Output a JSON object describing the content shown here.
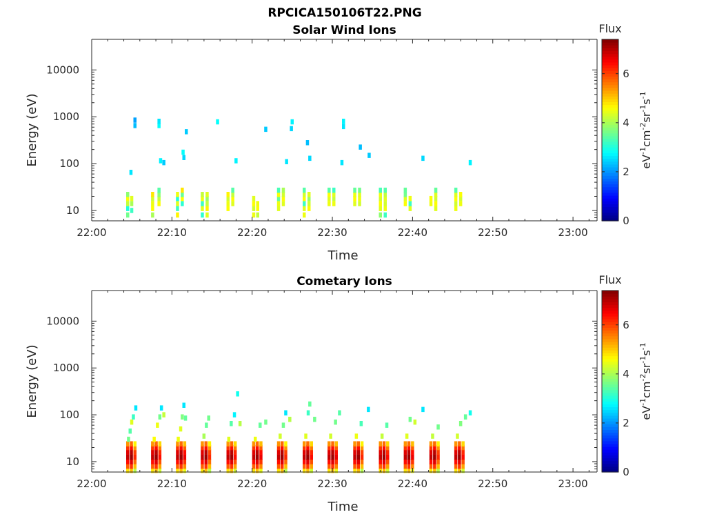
{
  "figure": {
    "file_title": "RPCICA150106T22.PNG"
  },
  "colorbar": {
    "title": "Flux",
    "unit_base": "eV",
    "unit_text": "eV-1cm-2sr-1s-1",
    "ticks": [
      "0",
      "2",
      "4",
      "6"
    ],
    "range": [
      0,
      7.4
    ],
    "colormap": "jet"
  },
  "chart_data": [
    {
      "type": "heatmap",
      "title": "Solar Wind Ions",
      "xlabel": "Time",
      "ylabel": "Energy (eV)",
      "x_ticks": [
        "22:00",
        "22:10",
        "22:20",
        "22:30",
        "22:40",
        "22:50",
        "23:00"
      ],
      "x_range_minutes": [
        0,
        63
      ],
      "y_ticks": [
        "10",
        "100",
        "1000",
        "10000"
      ],
      "y_range": [
        6,
        45000
      ],
      "y_scale": "log",
      "z_label": "Flux",
      "z_range": [
        0,
        7.4
      ],
      "scan_start_minutes": [
        4.3,
        7.4,
        10.5,
        13.6,
        16.8,
        20.0,
        23.1,
        26.3,
        29.4,
        32.6,
        35.8,
        38.9,
        42.1,
        45.2
      ],
      "cells": [
        {
          "t": 4.3,
          "e": 8,
          "flux": 3.6
        },
        {
          "t": 4.3,
          "e": 11,
          "flux": 3.0
        },
        {
          "t": 4.3,
          "e": 14,
          "flux": 4.2
        },
        {
          "t": 4.3,
          "e": 18,
          "flux": 4.6
        },
        {
          "t": 4.3,
          "e": 22,
          "flux": 3.8
        },
        {
          "t": 4.8,
          "e": 10,
          "flux": 3.2
        },
        {
          "t": 4.8,
          "e": 14,
          "flux": 4.0
        },
        {
          "t": 4.8,
          "e": 18,
          "flux": 4.4
        },
        {
          "t": 4.7,
          "e": 65,
          "flux": 2.6
        },
        {
          "t": 5.2,
          "e": 650,
          "flux": 2.3
        },
        {
          "t": 5.2,
          "e": 850,
          "flux": 2.1
        },
        {
          "t": 7.4,
          "e": 8,
          "flux": 4.0
        },
        {
          "t": 7.4,
          "e": 11,
          "flux": 4.6
        },
        {
          "t": 7.4,
          "e": 14,
          "flux": 4.5
        },
        {
          "t": 7.4,
          "e": 18,
          "flux": 4.3
        },
        {
          "t": 7.4,
          "e": 22,
          "flux": 4.8
        },
        {
          "t": 8.2,
          "e": 14,
          "flux": 4.6
        },
        {
          "t": 8.2,
          "e": 18,
          "flux": 4.2
        },
        {
          "t": 8.2,
          "e": 22,
          "flux": 3.8
        },
        {
          "t": 8.2,
          "e": 27,
          "flux": 3.4
        },
        {
          "t": 8.2,
          "e": 650,
          "flux": 2.8
        },
        {
          "t": 8.2,
          "e": 800,
          "flux": 2.6
        },
        {
          "t": 8.4,
          "e": 115,
          "flux": 2.7
        },
        {
          "t": 8.8,
          "e": 105,
          "flux": 2.4
        },
        {
          "t": 10.5,
          "e": 8,
          "flux": 4.7
        },
        {
          "t": 10.5,
          "e": 11,
          "flux": 3.2
        },
        {
          "t": 10.5,
          "e": 14,
          "flux": 4.4
        },
        {
          "t": 10.5,
          "e": 18,
          "flux": 3.0
        },
        {
          "t": 10.5,
          "e": 22,
          "flux": 4.5
        },
        {
          "t": 11.1,
          "e": 14,
          "flux": 3.1
        },
        {
          "t": 11.1,
          "e": 18,
          "flux": 4.6
        },
        {
          "t": 11.1,
          "e": 22,
          "flux": 3.5
        },
        {
          "t": 11.1,
          "e": 27,
          "flux": 4.8
        },
        {
          "t": 11.2,
          "e": 175,
          "flux": 2.8
        },
        {
          "t": 11.3,
          "e": 135,
          "flux": 2.5
        },
        {
          "t": 11.6,
          "e": 480,
          "flux": 2.4
        },
        {
          "t": 13.6,
          "e": 8,
          "flux": 3.1
        },
        {
          "t": 13.6,
          "e": 11,
          "flux": 4.4
        },
        {
          "t": 13.6,
          "e": 14,
          "flux": 3.2
        },
        {
          "t": 13.6,
          "e": 18,
          "flux": 4.5
        },
        {
          "t": 13.6,
          "e": 22,
          "flux": 4.2
        },
        {
          "t": 14.2,
          "e": 8,
          "flux": 4.4
        },
        {
          "t": 14.2,
          "e": 11,
          "flux": 4.7
        },
        {
          "t": 14.2,
          "e": 14,
          "flux": 4.2
        },
        {
          "t": 14.2,
          "e": 18,
          "flux": 3.9
        },
        {
          "t": 14.2,
          "e": 22,
          "flux": 4.4
        },
        {
          "t": 15.5,
          "e": 780,
          "flux": 2.8
        },
        {
          "t": 16.8,
          "e": 11,
          "flux": 4.6
        },
        {
          "t": 16.8,
          "e": 14,
          "flux": 4.5
        },
        {
          "t": 16.8,
          "e": 18,
          "flux": 4.3
        },
        {
          "t": 16.8,
          "e": 22,
          "flux": 4.7
        },
        {
          "t": 17.4,
          "e": 14,
          "flux": 4.4
        },
        {
          "t": 17.4,
          "e": 18,
          "flux": 4.6
        },
        {
          "t": 17.4,
          "e": 22,
          "flux": 4.2
        },
        {
          "t": 17.4,
          "e": 27,
          "flux": 3.4
        },
        {
          "t": 17.8,
          "e": 115,
          "flux": 2.7
        },
        {
          "t": 20.0,
          "e": 8,
          "flux": 4.5
        },
        {
          "t": 20.0,
          "e": 11,
          "flux": 4.3
        },
        {
          "t": 20.0,
          "e": 14,
          "flux": 4.6
        },
        {
          "t": 20.0,
          "e": 18,
          "flux": 4.4
        },
        {
          "t": 20.5,
          "e": 8,
          "flux": 4.2
        },
        {
          "t": 20.5,
          "e": 11,
          "flux": 4.6
        },
        {
          "t": 20.5,
          "e": 14,
          "flux": 4.5
        },
        {
          "t": 21.5,
          "e": 540,
          "flux": 2.4
        },
        {
          "t": 23.1,
          "e": 11,
          "flux": 4.4
        },
        {
          "t": 23.1,
          "e": 14,
          "flux": 4.5
        },
        {
          "t": 23.1,
          "e": 18,
          "flux": 3.5
        },
        {
          "t": 23.1,
          "e": 22,
          "flux": 4.6
        },
        {
          "t": 23.1,
          "e": 27,
          "flux": 3.3
        },
        {
          "t": 23.7,
          "e": 14,
          "flux": 4.4
        },
        {
          "t": 23.7,
          "e": 18,
          "flux": 4.6
        },
        {
          "t": 23.7,
          "e": 22,
          "flux": 4.3
        },
        {
          "t": 23.7,
          "e": 27,
          "flux": 4.0
        },
        {
          "t": 24.1,
          "e": 110,
          "flux": 2.6
        },
        {
          "t": 24.7,
          "e": 560,
          "flux": 2.5
        },
        {
          "t": 24.8,
          "e": 780,
          "flux": 2.7
        },
        {
          "t": 26.3,
          "e": 8,
          "flux": 4.5
        },
        {
          "t": 26.3,
          "e": 11,
          "flux": 4.4
        },
        {
          "t": 26.3,
          "e": 14,
          "flux": 3.2
        },
        {
          "t": 26.3,
          "e": 18,
          "flux": 4.6
        },
        {
          "t": 26.3,
          "e": 22,
          "flux": 4.3
        },
        {
          "t": 26.3,
          "e": 27,
          "flux": 3.4
        },
        {
          "t": 26.9,
          "e": 11,
          "flux": 4.6
        },
        {
          "t": 26.9,
          "e": 14,
          "flux": 4.3
        },
        {
          "t": 26.9,
          "e": 18,
          "flux": 3.9
        },
        {
          "t": 26.9,
          "e": 22,
          "flux": 4.4
        },
        {
          "t": 26.7,
          "e": 280,
          "flux": 2.3
        },
        {
          "t": 27.0,
          "e": 130,
          "flux": 2.5
        },
        {
          "t": 29.4,
          "e": 14,
          "flux": 4.5
        },
        {
          "t": 29.4,
          "e": 18,
          "flux": 4.4
        },
        {
          "t": 29.4,
          "e": 22,
          "flux": 4.6
        },
        {
          "t": 29.4,
          "e": 27,
          "flux": 3.4
        },
        {
          "t": 30.0,
          "e": 14,
          "flux": 4.5
        },
        {
          "t": 30.0,
          "e": 18,
          "flux": 4.2
        },
        {
          "t": 30.0,
          "e": 22,
          "flux": 4.4
        },
        {
          "t": 30.0,
          "e": 27,
          "flux": 3.2
        },
        {
          "t": 31.0,
          "e": 105,
          "flux": 2.6
        },
        {
          "t": 31.2,
          "e": 620,
          "flux": 2.6
        },
        {
          "t": 31.2,
          "e": 800,
          "flux": 2.7
        },
        {
          "t": 32.6,
          "e": 14,
          "flux": 4.4
        },
        {
          "t": 32.6,
          "e": 18,
          "flux": 4.6
        },
        {
          "t": 32.6,
          "e": 22,
          "flux": 4.5
        },
        {
          "t": 32.6,
          "e": 27,
          "flux": 3.5
        },
        {
          "t": 33.2,
          "e": 14,
          "flux": 4.3
        },
        {
          "t": 33.2,
          "e": 18,
          "flux": 4.5
        },
        {
          "t": 33.2,
          "e": 22,
          "flux": 4.4
        },
        {
          "t": 33.2,
          "e": 27,
          "flux": 3.6
        },
        {
          "t": 33.3,
          "e": 225,
          "flux": 2.3
        },
        {
          "t": 34.4,
          "e": 150,
          "flux": 2.4
        },
        {
          "t": 35.8,
          "e": 8,
          "flux": 3.8
        },
        {
          "t": 35.8,
          "e": 11,
          "flux": 4.4
        },
        {
          "t": 35.8,
          "e": 14,
          "flux": 4.6
        },
        {
          "t": 35.8,
          "e": 18,
          "flux": 4.3
        },
        {
          "t": 35.8,
          "e": 22,
          "flux": 4.5
        },
        {
          "t": 35.8,
          "e": 27,
          "flux": 3.3
        },
        {
          "t": 36.4,
          "e": 8,
          "flux": 3.2
        },
        {
          "t": 36.4,
          "e": 11,
          "flux": 4.5
        },
        {
          "t": 36.4,
          "e": 14,
          "flux": 4.3
        },
        {
          "t": 36.4,
          "e": 18,
          "flux": 4.4
        },
        {
          "t": 36.4,
          "e": 22,
          "flux": 4.2
        },
        {
          "t": 36.4,
          "e": 27,
          "flux": 3.4
        },
        {
          "t": 38.9,
          "e": 14,
          "flux": 4.6
        },
        {
          "t": 38.9,
          "e": 18,
          "flux": 4.4
        },
        {
          "t": 38.9,
          "e": 22,
          "flux": 3.6
        },
        {
          "t": 38.9,
          "e": 27,
          "flux": 3.5
        },
        {
          "t": 39.5,
          "e": 11,
          "flux": 4.4
        },
        {
          "t": 39.5,
          "e": 14,
          "flux": 3.2
        },
        {
          "t": 39.5,
          "e": 18,
          "flux": 4.5
        },
        {
          "t": 41.1,
          "e": 130,
          "flux": 2.5
        },
        {
          "t": 42.1,
          "e": 14,
          "flux": 4.5
        },
        {
          "t": 42.1,
          "e": 18,
          "flux": 4.6
        },
        {
          "t": 42.7,
          "e": 11,
          "flux": 4.4
        },
        {
          "t": 42.7,
          "e": 14,
          "flux": 4.6
        },
        {
          "t": 42.7,
          "e": 18,
          "flux": 4.3
        },
        {
          "t": 42.7,
          "e": 22,
          "flux": 4.4
        },
        {
          "t": 42.7,
          "e": 27,
          "flux": 3.5
        },
        {
          "t": 45.2,
          "e": 11,
          "flux": 4.5
        },
        {
          "t": 45.2,
          "e": 14,
          "flux": 4.3
        },
        {
          "t": 45.2,
          "e": 18,
          "flux": 4.6
        },
        {
          "t": 45.2,
          "e": 22,
          "flux": 4.4
        },
        {
          "t": 45.2,
          "e": 27,
          "flux": 3.4
        },
        {
          "t": 45.8,
          "e": 14,
          "flux": 4.5
        },
        {
          "t": 45.8,
          "e": 18,
          "flux": 4.3
        },
        {
          "t": 45.8,
          "e": 22,
          "flux": 4.6
        },
        {
          "t": 47.0,
          "e": 105,
          "flux": 2.7
        }
      ]
    },
    {
      "type": "heatmap",
      "title": "Cometary Ions",
      "xlabel": "Time",
      "ylabel": "Energy (eV)",
      "x_ticks": [
        "22:00",
        "22:10",
        "22:20",
        "22:30",
        "22:40",
        "22:50",
        "23:00"
      ],
      "x_range_minutes": [
        0,
        63
      ],
      "y_ticks": [
        "10",
        "100",
        "1000",
        "10000"
      ],
      "y_range": [
        6,
        45000
      ],
      "y_scale": "log",
      "z_label": "Flux",
      "z_range": [
        0,
        7.4
      ],
      "scan_start_minutes": [
        4.3,
        7.4,
        10.5,
        13.6,
        16.8,
        20.0,
        23.1,
        26.3,
        29.4,
        32.6,
        35.8,
        38.9,
        42.1,
        45.2
      ],
      "band_energies_eV": [
        6.5,
        8,
        10,
        12.5,
        16,
        20,
        24
      ],
      "band_flux_profile": [
        4.8,
        5.8,
        6.4,
        6.9,
        6.7,
        6.1,
        5.4
      ],
      "cells": [
        {
          "t": 4.4,
          "e": 30,
          "flux": 3.6
        },
        {
          "t": 4.6,
          "e": 45,
          "flux": 3.4
        },
        {
          "t": 4.8,
          "e": 70,
          "flux": 4.4
        },
        {
          "t": 5.0,
          "e": 90,
          "flux": 3.2
        },
        {
          "t": 5.3,
          "e": 140,
          "flux": 2.6
        },
        {
          "t": 7.6,
          "e": 30,
          "flux": 4.6
        },
        {
          "t": 8.0,
          "e": 60,
          "flux": 4.5
        },
        {
          "t": 8.3,
          "e": 90,
          "flux": 3.6
        },
        {
          "t": 8.5,
          "e": 140,
          "flux": 2.6
        },
        {
          "t": 8.8,
          "e": 100,
          "flux": 4.2
        },
        {
          "t": 10.6,
          "e": 30,
          "flux": 4.5
        },
        {
          "t": 10.9,
          "e": 50,
          "flux": 4.4
        },
        {
          "t": 11.1,
          "e": 90,
          "flux": 3.7
        },
        {
          "t": 11.3,
          "e": 160,
          "flux": 2.6
        },
        {
          "t": 11.5,
          "e": 85,
          "flux": 3.5
        },
        {
          "t": 13.8,
          "e": 35,
          "flux": 4.0
        },
        {
          "t": 14.1,
          "e": 60,
          "flux": 3.5
        },
        {
          "t": 14.4,
          "e": 85,
          "flux": 3.6
        },
        {
          "t": 16.9,
          "e": 30,
          "flux": 4.4
        },
        {
          "t": 17.2,
          "e": 65,
          "flux": 3.4
        },
        {
          "t": 17.6,
          "e": 100,
          "flux": 2.7
        },
        {
          "t": 18.0,
          "e": 280,
          "flux": 2.9
        },
        {
          "t": 18.3,
          "e": 65,
          "flux": 4.1
        },
        {
          "t": 20.2,
          "e": 30,
          "flux": 4.5
        },
        {
          "t": 20.8,
          "e": 60,
          "flux": 3.5
        },
        {
          "t": 21.5,
          "e": 70,
          "flux": 3.6
        },
        {
          "t": 23.3,
          "e": 35,
          "flux": 4.3
        },
        {
          "t": 23.7,
          "e": 60,
          "flux": 3.6
        },
        {
          "t": 24.0,
          "e": 110,
          "flux": 2.6
        },
        {
          "t": 24.5,
          "e": 80,
          "flux": 4.1
        },
        {
          "t": 26.5,
          "e": 35,
          "flux": 4.4
        },
        {
          "t": 26.8,
          "e": 110,
          "flux": 3.2
        },
        {
          "t": 27.0,
          "e": 170,
          "flux": 3.5
        },
        {
          "t": 27.6,
          "e": 80,
          "flux": 3.6
        },
        {
          "t": 29.6,
          "e": 35,
          "flux": 4.3
        },
        {
          "t": 30.2,
          "e": 70,
          "flux": 3.6
        },
        {
          "t": 30.7,
          "e": 110,
          "flux": 3.4
        },
        {
          "t": 32.8,
          "e": 35,
          "flux": 4.5
        },
        {
          "t": 33.4,
          "e": 65,
          "flux": 3.3
        },
        {
          "t": 34.3,
          "e": 130,
          "flux": 2.6
        },
        {
          "t": 36.0,
          "e": 35,
          "flux": 4.2
        },
        {
          "t": 36.6,
          "e": 60,
          "flux": 3.4
        },
        {
          "t": 39.1,
          "e": 35,
          "flux": 4.4
        },
        {
          "t": 39.5,
          "e": 80,
          "flux": 3.6
        },
        {
          "t": 40.1,
          "e": 70,
          "flux": 4.3
        },
        {
          "t": 41.1,
          "e": 130,
          "flux": 2.6
        },
        {
          "t": 42.3,
          "e": 35,
          "flux": 4.2
        },
        {
          "t": 43.0,
          "e": 55,
          "flux": 3.6
        },
        {
          "t": 45.4,
          "e": 35,
          "flux": 4.3
        },
        {
          "t": 45.8,
          "e": 65,
          "flux": 3.7
        },
        {
          "t": 46.4,
          "e": 90,
          "flux": 3.5
        },
        {
          "t": 47.0,
          "e": 110,
          "flux": 2.9
        }
      ]
    }
  ]
}
